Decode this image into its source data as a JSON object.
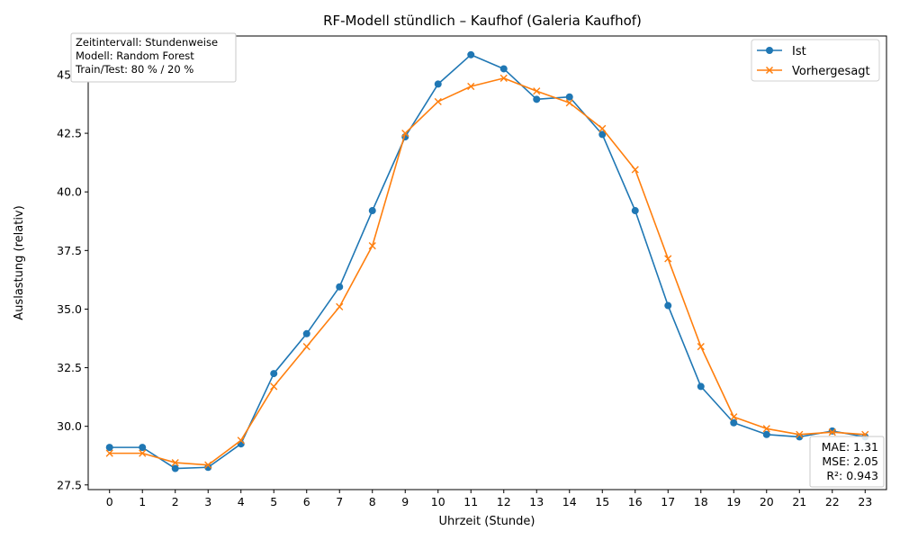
{
  "chart_data": {
    "type": "line",
    "title": "RF-Modell stündlich – Kaufhof (Galeria Kaufhof)",
    "xlabel": "Uhrzeit (Stunde)",
    "ylabel": "Auslastung (relativ)",
    "x": [
      0,
      1,
      2,
      3,
      4,
      5,
      6,
      7,
      8,
      9,
      10,
      11,
      12,
      13,
      14,
      15,
      16,
      17,
      18,
      19,
      20,
      21,
      22,
      23
    ],
    "xticks": [
      "0",
      "1",
      "2",
      "3",
      "4",
      "5",
      "6",
      "7",
      "8",
      "9",
      "10",
      "11",
      "12",
      "13",
      "14",
      "15",
      "16",
      "17",
      "18",
      "19",
      "20",
      "21",
      "22",
      "23"
    ],
    "yticks": [
      "27.5",
      "30.0",
      "32.5",
      "35.0",
      "37.5",
      "40.0",
      "42.5",
      "45.0"
    ],
    "ylim": [
      27.3,
      46.65
    ],
    "xlim": [
      -0.65,
      23.65
    ],
    "grid": false,
    "legend_position": "top-right",
    "series": [
      {
        "name": "Ist",
        "color": "#1f77b4",
        "marker": "circle",
        "values": [
          29.1,
          29.1,
          28.2,
          28.25,
          29.25,
          32.25,
          33.95,
          35.95,
          39.2,
          42.35,
          44.6,
          45.85,
          45.25,
          43.95,
          44.05,
          42.45,
          39.2,
          35.15,
          31.7,
          30.15,
          29.65,
          29.55,
          29.8,
          29.55
        ]
      },
      {
        "name": "Vorhergesagt",
        "color": "#ff7f0e",
        "marker": "x",
        "values": [
          28.85,
          28.85,
          28.45,
          28.35,
          29.4,
          31.7,
          33.4,
          35.1,
          37.7,
          42.5,
          43.85,
          44.5,
          44.85,
          44.3,
          43.8,
          42.7,
          40.95,
          37.15,
          33.4,
          30.4,
          29.9,
          29.65,
          29.75,
          29.65
        ]
      }
    ],
    "info_box": {
      "lines": [
        "Zeitintervall: Stundenweise",
        "Modell: Random Forest",
        "Train/Test: 80 % / 20 %"
      ]
    },
    "metrics_box": {
      "lines": [
        "MAE: 1.31",
        "MSE: 2.05",
        "R²: 0.943"
      ]
    }
  }
}
